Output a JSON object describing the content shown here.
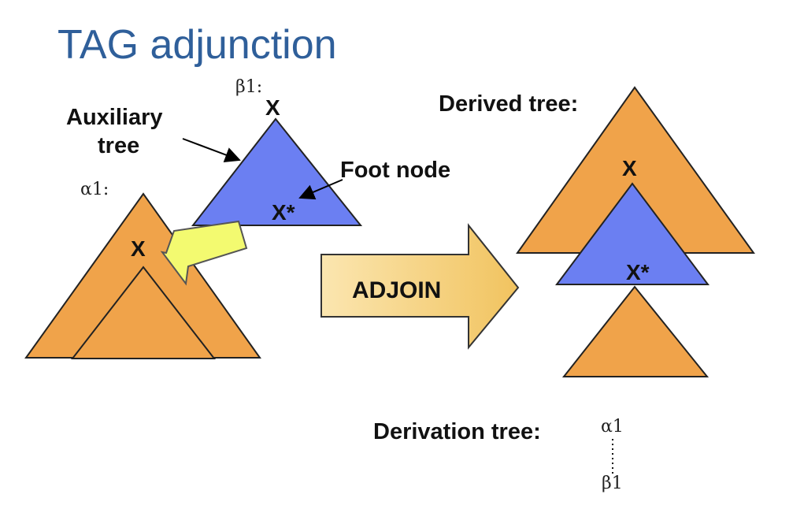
{
  "slide": {
    "title": "TAG adjunction"
  },
  "labels": {
    "auxiliary_tree_line1": "Auxiliary",
    "auxiliary_tree_line2": "tree",
    "foot_node": "Foot node",
    "derived_tree": "Derived tree:",
    "derivation_tree": "Derivation tree:",
    "adjoin": "ADJOIN"
  },
  "trees": {
    "alpha1_name": "α1:",
    "beta1_name": "β1:",
    "alpha1_node": "X",
    "beta1_root": "X",
    "beta1_foot": "X*",
    "derived_node": "X",
    "derived_foot": "X*"
  },
  "derivation": {
    "parent": "α1",
    "child": "β1"
  },
  "colors": {
    "orange_tree": "#f0a34a",
    "blue_tree": "#6b7ff2",
    "yellow_arrow": "#f3fa70",
    "adjoin_arrow": "#f8d27e",
    "title": "#2f5f9a"
  }
}
